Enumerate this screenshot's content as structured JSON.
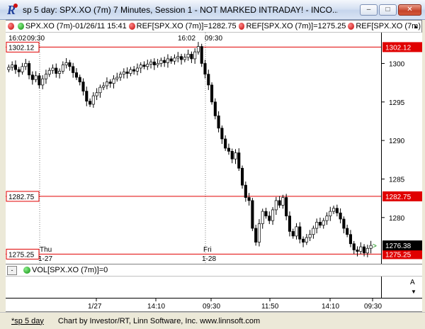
{
  "window": {
    "title": "sp 5 day: SPX.XO (7m) 7 Minutes, Session 1 - NOT MARKED INTRADAY! - INCO...",
    "minimize_label": "–",
    "maximize_label": "□",
    "close_label": "✕"
  },
  "legend": {
    "symbol": "SPX.XO (7m)-01/26/11 15:41",
    "ref1": "REF[SPX.XO (7m)]=1282.75",
    "ref2": "REF[SPX.XO (7m)]=1275.25",
    "ref3": "REF[SPX.XO (7m)",
    "scroll_up_label": "▲"
  },
  "top_time_labels": [
    "16:02",
    "09:30",
    "16:02",
    "09:30"
  ],
  "reference_lines": [
    {
      "label": "1302.12",
      "value": 1302.12,
      "color": "#e00000"
    },
    {
      "label": "1282.75",
      "value": 1282.75,
      "color": "#e00000"
    },
    {
      "label": "1275.25",
      "value": 1275.25,
      "color": "#e00000"
    }
  ],
  "last_price": {
    "label": "1276.38",
    "value": 1276.38
  },
  "day_labels": [
    {
      "day": "Thu",
      "date": "1-27"
    },
    {
      "day": "Fri",
      "date": "1-28"
    }
  ],
  "volume": {
    "label": "VOL[SPX.XO (7m)]=0",
    "toggle_label": "-",
    "axis_label": "A",
    "scroll_label": "▼"
  },
  "time_axis": [
    "1/27",
    "14:10",
    "09:30",
    "11:50",
    "14:10",
    "09:30"
  ],
  "status": {
    "tab_label": "*sp 5 day",
    "credit": "Chart by Investor/RT, Linn Software, Inc. www.linnsoft.com"
  },
  "colors": {
    "up_candle": "#ffffff",
    "down_candle": "#000000",
    "ref_line": "#e00000",
    "last_price_bg": "#000000"
  },
  "chart_data": {
    "type": "candlestick",
    "y_ticks": [
      1280,
      1285,
      1290,
      1295,
      1300
    ],
    "ylim": [
      1274,
      1304
    ],
    "closes": [
      1299.5,
      1299.8,
      1299.2,
      1298.9,
      1299.6,
      1300.0,
      1298.5,
      1297.9,
      1298.4,
      1297.2,
      1298.0,
      1298.6,
      1299.1,
      1299.4,
      1298.7,
      1299.0,
      1299.8,
      1300.1,
      1299.6,
      1298.8,
      1298.2,
      1297.6,
      1296.4,
      1295.1,
      1294.7,
      1295.8,
      1296.2,
      1296.9,
      1297.1,
      1297.6,
      1297.4,
      1298.0,
      1298.2,
      1298.6,
      1298.9,
      1298.7,
      1299.2,
      1299.0,
      1299.4,
      1299.8,
      1299.6,
      1299.9,
      1300.2,
      1299.8,
      1300.0,
      1300.4,
      1300.1,
      1300.6,
      1300.3,
      1300.7,
      1300.9,
      1300.5,
      1300.8,
      1301.2,
      1300.6,
      1301.5,
      1302.2,
      1300.0,
      1298.6,
      1297.2,
      1295.0,
      1293.2,
      1291.6,
      1290.2,
      1289.0,
      1288.6,
      1287.6,
      1288.4,
      1286.4,
      1284.2,
      1282.6,
      1282.2,
      1278.6,
      1276.8,
      1279.2,
      1280.8,
      1280.2,
      1279.6,
      1281.0,
      1282.2,
      1281.6,
      1282.6,
      1280.2,
      1278.2,
      1277.6,
      1278.8,
      1277.2,
      1276.8,
      1277.4,
      1277.8,
      1278.6,
      1279.4,
      1279.0,
      1279.6,
      1280.2,
      1280.8,
      1281.2,
      1280.6,
      1279.8,
      1278.6,
      1277.8,
      1276.6,
      1275.8,
      1275.6,
      1276.2,
      1275.4,
      1276.0,
      1276.38
    ]
  }
}
